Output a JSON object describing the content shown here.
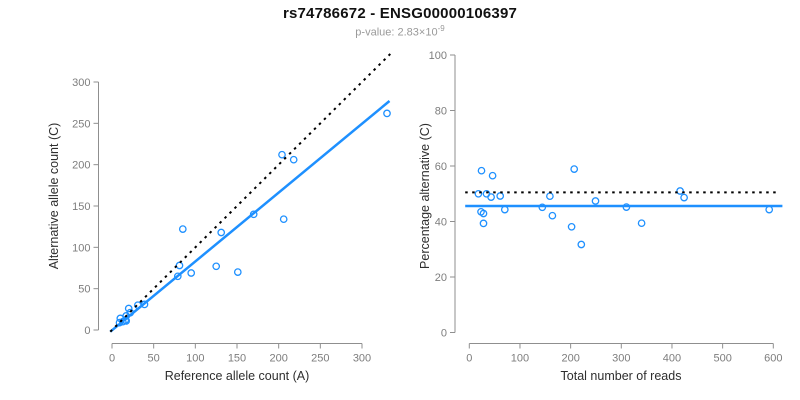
{
  "title": "rs74786672 - ENSG00000106397",
  "subtitle": {
    "text": "p-value: 2.83×10",
    "exponent": "-9"
  },
  "colors": {
    "accent": "#1E90FF",
    "dotted_line": "#000000",
    "axis": "#8f8f8f",
    "tick_label": "#7d7d7d",
    "axis_label": "#2e2e2e",
    "subtitle": "#9a9a9a",
    "background": "#ffffff"
  },
  "chart_data": [
    {
      "type": "scatter",
      "title": "",
      "xlabel": "Reference allele count (A)",
      "ylabel": "Alternative allele count (C)",
      "xlim": [
        0,
        300
      ],
      "ylim": [
        0,
        300
      ],
      "xticks": [
        0,
        50,
        100,
        150,
        200,
        250,
        300
      ],
      "yticks": [
        0,
        50,
        100,
        150,
        200,
        250,
        300
      ],
      "grid": false,
      "marker": "open-circle",
      "points": [
        [
          9,
          9
        ],
        [
          13,
          10
        ],
        [
          10,
          14
        ],
        [
          16,
          12
        ],
        [
          17,
          11
        ],
        [
          17,
          17
        ],
        [
          22,
          21
        ],
        [
          20,
          26
        ],
        [
          31,
          30
        ],
        [
          39,
          31
        ],
        [
          79,
          65
        ],
        [
          81,
          78
        ],
        [
          95,
          69
        ],
        [
          85,
          122
        ],
        [
          125,
          77
        ],
        [
          151,
          70
        ],
        [
          131,
          118
        ],
        [
          170,
          140
        ],
        [
          206,
          134
        ],
        [
          204,
          212
        ],
        [
          218,
          206
        ],
        [
          330,
          262
        ]
      ],
      "lines": [
        {
          "name": "fitted-line",
          "style": "solid",
          "color": "#1E90FF",
          "from": [
            -2,
            -2
          ],
          "to": [
            333,
            277
          ]
        },
        {
          "name": "identity-line",
          "style": "dotted",
          "color": "#000000",
          "from": [
            -2,
            -2
          ],
          "to": [
            334,
            334
          ]
        }
      ]
    },
    {
      "type": "scatter",
      "title": "",
      "xlabel": "Total number of reads",
      "ylabel": "Percentage alternative (C)",
      "xlim": [
        0,
        600
      ],
      "ylim": [
        0,
        100
      ],
      "xticks": [
        0,
        100,
        200,
        300,
        400,
        500,
        600
      ],
      "yticks": [
        0,
        20,
        40,
        60,
        80,
        100
      ],
      "grid": false,
      "marker": "open-circle",
      "points": [
        [
          18,
          50
        ],
        [
          23,
          43.5
        ],
        [
          24,
          58.3
        ],
        [
          28,
          42.9
        ],
        [
          28,
          39.3
        ],
        [
          34,
          50
        ],
        [
          43,
          48.8
        ],
        [
          46,
          56.5
        ],
        [
          61,
          49.2
        ],
        [
          70,
          44.3
        ],
        [
          144,
          45.1
        ],
        [
          159,
          49.1
        ],
        [
          164,
          42.1
        ],
        [
          207,
          58.9
        ],
        [
          202,
          38.1
        ],
        [
          221,
          31.7
        ],
        [
          249,
          47.4
        ],
        [
          310,
          45.2
        ],
        [
          340,
          39.4
        ],
        [
          416,
          51
        ],
        [
          424,
          48.6
        ],
        [
          592,
          44.3
        ]
      ],
      "lines": [
        {
          "name": "fitted-percentage-line",
          "style": "solid",
          "color": "#1E90FF",
          "from": [
            -8,
            45.6
          ],
          "to": [
            618,
            45.6
          ]
        },
        {
          "name": "null-50-percent-line",
          "style": "dotted",
          "color": "#000000",
          "from": [
            -8,
            50.5
          ],
          "to": [
            612,
            50.5
          ]
        }
      ]
    }
  ]
}
